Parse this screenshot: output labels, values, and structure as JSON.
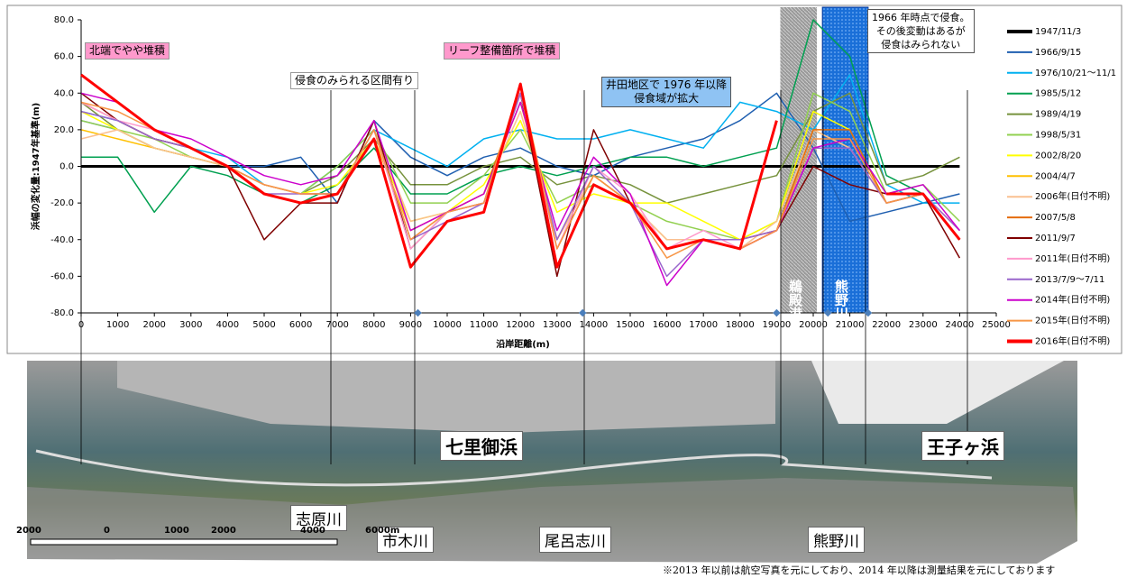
{
  "chart_data": {
    "type": "line",
    "y_label": "浜幅の変化量:1947年基準(m)",
    "x_label": "沿岸距離(m)",
    "x": [
      0,
      1000,
      2000,
      3000,
      4000,
      5000,
      6000,
      7000,
      8000,
      9000,
      10000,
      11000,
      12000,
      13000,
      14000,
      15000,
      16000,
      17000,
      18000,
      19000,
      20000,
      21000,
      22000,
      23000,
      24000
    ],
    "xlim": [
      0,
      25000
    ],
    "xticks": [
      0,
      1000,
      2000,
      3000,
      4000,
      5000,
      6000,
      7000,
      8000,
      9000,
      10000,
      11000,
      12000,
      13000,
      14000,
      15000,
      16000,
      17000,
      18000,
      19000,
      20000,
      21000,
      22000,
      23000,
      24000,
      25000
    ],
    "ylim": [
      -80,
      80
    ],
    "yticks": [
      {
        "value": -80,
        "label": "-80.0"
      },
      {
        "value": -60,
        "label": "-60.0"
      },
      {
        "value": -40,
        "label": "-40.0"
      },
      {
        "value": -20,
        "label": "-20.0"
      },
      {
        "value": 0,
        "label": "0.0"
      },
      {
        "value": 20,
        "label": "20.0"
      },
      {
        "value": 40,
        "label": "40.0"
      },
      {
        "value": 60,
        "label": "60.0"
      },
      {
        "value": 80,
        "label": "80.0"
      }
    ],
    "legend": "right",
    "annotations": [
      "北端でやや堆積",
      "リーフ整備箇所で堆積",
      "侵食のみられる区間有り",
      "井田地区で 1976 年以降\n侵食域が拡大",
      "1966 年時点で侵食。\nその後変動はあるが\n侵食はみられない",
      "鵜殿港",
      "熊野川"
    ],
    "series": [
      {
        "name": "1947/11/3",
        "color": "#000000",
        "values": [
          0,
          0,
          0,
          0,
          0,
          0,
          0,
          0,
          0,
          0,
          0,
          0,
          0,
          0,
          0,
          0,
          0,
          0,
          0,
          0,
          0,
          0,
          0,
          0,
          0
        ]
      },
      {
        "name": "1966/9/15",
        "color": "#1f5fb0",
        "values": [
          25,
          20,
          10,
          5,
          0,
          0,
          5,
          -20,
          25,
          5,
          -5,
          5,
          10,
          0,
          -5,
          5,
          10,
          15,
          25,
          40,
          10,
          -30,
          -25,
          -20,
          -15
        ]
      },
      {
        "name": "1976/10/21～11/1",
        "color": "#00b0f0",
        "values": [
          30,
          25,
          15,
          10,
          5,
          -10,
          -15,
          0,
          20,
          10,
          0,
          15,
          20,
          15,
          15,
          20,
          15,
          10,
          35,
          30,
          20,
          50,
          -10,
          -20,
          -20
        ]
      },
      {
        "name": "1985/5/12",
        "color": "#00a050",
        "values": [
          5,
          5,
          -25,
          0,
          -5,
          -15,
          -20,
          -10,
          10,
          -15,
          -15,
          -5,
          0,
          -5,
          0,
          5,
          5,
          0,
          5,
          10,
          80,
          60,
          -5,
          -15,
          -40
        ]
      },
      {
        "name": "1989/4/19",
        "color": "#76923c",
        "values": [
          35,
          20,
          10,
          5,
          0,
          -10,
          -15,
          -5,
          15,
          -10,
          -10,
          0,
          5,
          -10,
          -5,
          -10,
          -20,
          -15,
          -10,
          -5,
          30,
          40,
          -10,
          -5,
          5
        ]
      },
      {
        "name": "1998/5/31",
        "color": "#92d050",
        "values": [
          25,
          20,
          15,
          5,
          0,
          -10,
          -15,
          0,
          20,
          -20,
          -20,
          -5,
          20,
          -20,
          -10,
          -20,
          -30,
          -35,
          -40,
          -30,
          40,
          30,
          -15,
          -10,
          -30
        ]
      },
      {
        "name": "2002/8/20",
        "color": "#ffff00",
        "values": [
          30,
          20,
          10,
          5,
          0,
          -10,
          -15,
          -10,
          15,
          -30,
          -25,
          -10,
          25,
          -25,
          -15,
          -20,
          -20,
          -30,
          -40,
          -30,
          30,
          20,
          -20,
          -15,
          -35
        ]
      },
      {
        "name": "2004/4/7",
        "color": "#ffc000",
        "values": [
          20,
          15,
          10,
          5,
          0,
          -10,
          -15,
          -15,
          15,
          -35,
          -25,
          -15,
          35,
          -40,
          -5,
          -20,
          -40,
          -40,
          -45,
          -35,
          20,
          10,
          -20,
          -15,
          -40
        ]
      },
      {
        "name": "2006年(日付不明)",
        "color": "#fac090",
        "values": [
          15,
          20,
          10,
          5,
          0,
          -10,
          -15,
          -15,
          20,
          -30,
          -25,
          -15,
          30,
          -40,
          -5,
          -20,
          -40,
          -40,
          -45,
          -30,
          20,
          10,
          -20,
          -15,
          -40
        ]
      },
      {
        "name": "2007/5/8",
        "color": "#e46c0a",
        "values": [
          35,
          25,
          15,
          10,
          0,
          -10,
          -15,
          -15,
          20,
          -40,
          -25,
          -15,
          40,
          -45,
          -5,
          -20,
          -45,
          -40,
          -45,
          -35,
          20,
          20,
          -20,
          -15,
          -40
        ]
      },
      {
        "name": "2011/9/7",
        "color": "#7f0000",
        "values": [
          40,
          25,
          15,
          10,
          0,
          -40,
          -20,
          -20,
          25,
          -45,
          -25,
          -20,
          40,
          -60,
          20,
          -20,
          -45,
          -40,
          -40,
          -35,
          0,
          -10,
          -15,
          -15,
          -50
        ]
      },
      {
        "name": "2011年(日付不明)",
        "color": "#ff99cc",
        "values": [
          35,
          25,
          20,
          10,
          0,
          -10,
          -15,
          -15,
          20,
          -45,
          -25,
          -20,
          40,
          -45,
          0,
          -15,
          -45,
          -35,
          -45,
          -35,
          10,
          10,
          -20,
          -15,
          -35
        ]
      },
      {
        "name": "2013/7/9～7/11",
        "color": "#9966cc",
        "values": [
          30,
          25,
          15,
          10,
          0,
          -15,
          -15,
          -15,
          20,
          -40,
          -30,
          -20,
          40,
          -40,
          0,
          -20,
          -60,
          -40,
          -40,
          -35,
          10,
          10,
          -20,
          -15,
          -35
        ]
      },
      {
        "name": "2014年(日付不明)",
        "color": "#cc00cc",
        "values": [
          40,
          35,
          20,
          15,
          5,
          -5,
          -10,
          -5,
          25,
          -35,
          -25,
          -15,
          35,
          -35,
          5,
          -15,
          -65,
          -40,
          -45,
          -35,
          10,
          15,
          -15,
          -10,
          -35
        ]
      },
      {
        "name": "2015年(日付不明)",
        "color": "#f79646",
        "values": [
          35,
          30,
          20,
          10,
          0,
          -10,
          -15,
          -15,
          20,
          -40,
          -25,
          -20,
          45,
          -45,
          -5,
          -20,
          -50,
          -40,
          -45,
          -35,
          15,
          15,
          -20,
          -15,
          -40
        ]
      },
      {
        "name": "2016年(日付不明)",
        "color": "#ff0000",
        "values": [
          50,
          35,
          20,
          10,
          0,
          -15,
          -20,
          -15,
          15,
          -55,
          -30,
          -25,
          45,
          -55,
          -10,
          -20,
          -45,
          -40,
          -45,
          25,
          null,
          null,
          -15,
          -15,
          -40
        ]
      }
    ]
  },
  "photo": {
    "labels": [
      "七里御浜",
      "王子ヶ浜",
      "志原川",
      "市木川",
      "尾呂志川",
      "熊野川"
    ],
    "scale_labels": [
      "2000",
      "0",
      "1000",
      "2000",
      "4000",
      "6000m"
    ]
  },
  "note": "※2013 年以前は航空写真を元にしており、2014 年以降は測量結果を元にしております"
}
